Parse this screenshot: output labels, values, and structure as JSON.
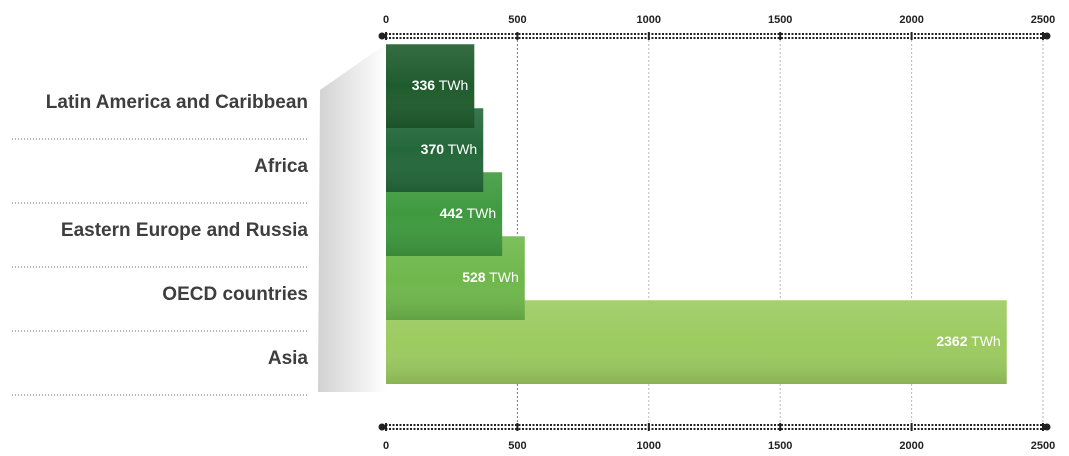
{
  "chart_data": {
    "type": "bar",
    "orientation": "horizontal",
    "categories": [
      "Latin America and Caribbean",
      "Africa",
      "Eastern Europe and Russia",
      "OECD countries",
      "Asia"
    ],
    "values": [
      336,
      370,
      442,
      528,
      2362
    ],
    "unit": "TWh",
    "xlim": [
      0,
      2500
    ],
    "ticks": [
      "0",
      "500",
      "1000",
      "1500",
      "2000",
      "2500"
    ],
    "gridlines": true,
    "axis_position": "top and bottom",
    "colors": {
      "bars": [
        "#1f5c2d",
        "#24683a",
        "#3f9a3f",
        "#6fb84c",
        "#9ccb60"
      ],
      "text": "#3e3e3e",
      "axis": "#222222",
      "value_text": "#ffffff"
    }
  }
}
